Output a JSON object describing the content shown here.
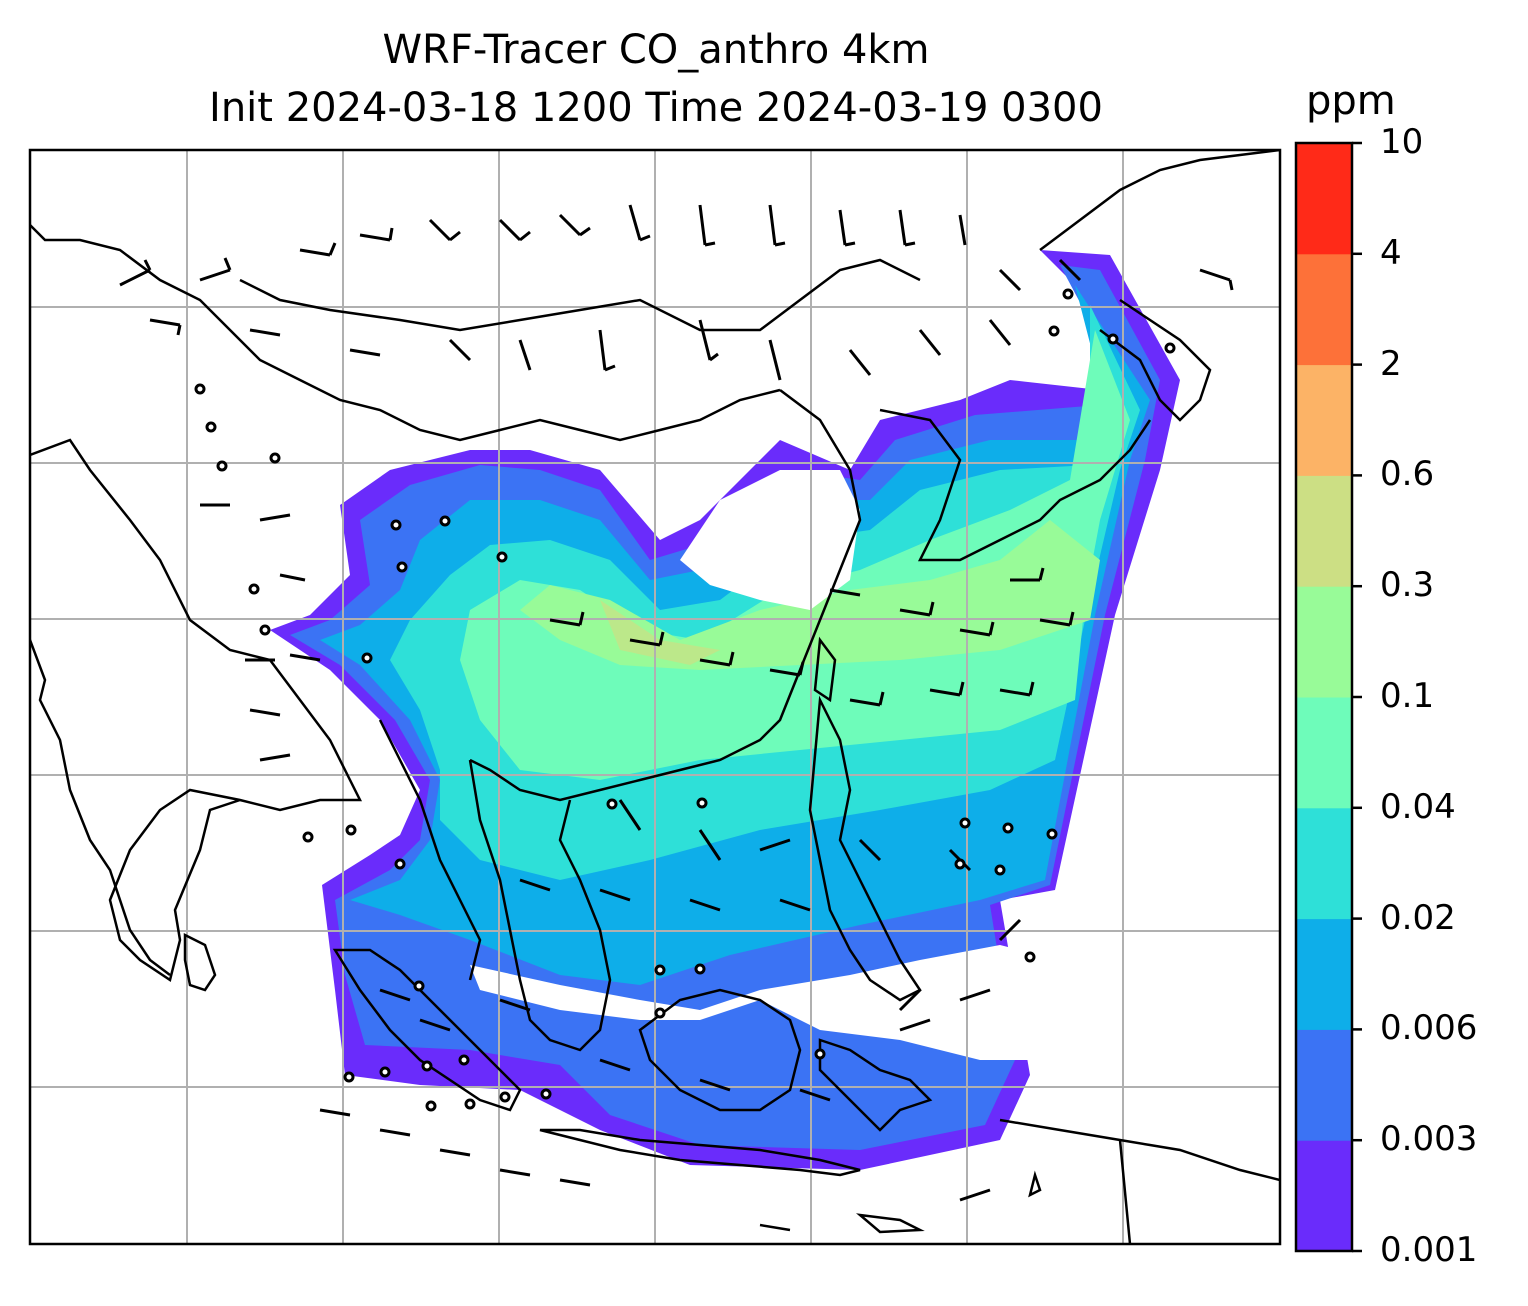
{
  "title": {
    "line1": "WRF-Tracer CO_anthro 4km",
    "line2": "Init 2024-03-18 1200 Time 2024-03-19 0300"
  },
  "colorbar": {
    "unit": "ppm",
    "ticks": [
      "0.001",
      "0.003",
      "0.006",
      "0.02",
      "0.04",
      "0.1",
      "0.3",
      "0.6",
      "2",
      "4",
      "10"
    ],
    "colors": [
      "#6a2cfb",
      "#3b73f4",
      "#0eaee9",
      "#2ee0d8",
      "#6efcba",
      "#98fb98",
      "#ccdf84",
      "#fcb366",
      "#fd7139",
      "#ff2a18"
    ]
  },
  "map": {
    "field": "CO_anthro",
    "units": "ppm",
    "gridlines": true,
    "coastlines": true,
    "wind_barbs": true,
    "region": "South and East Asia, Maritime Continent"
  }
}
